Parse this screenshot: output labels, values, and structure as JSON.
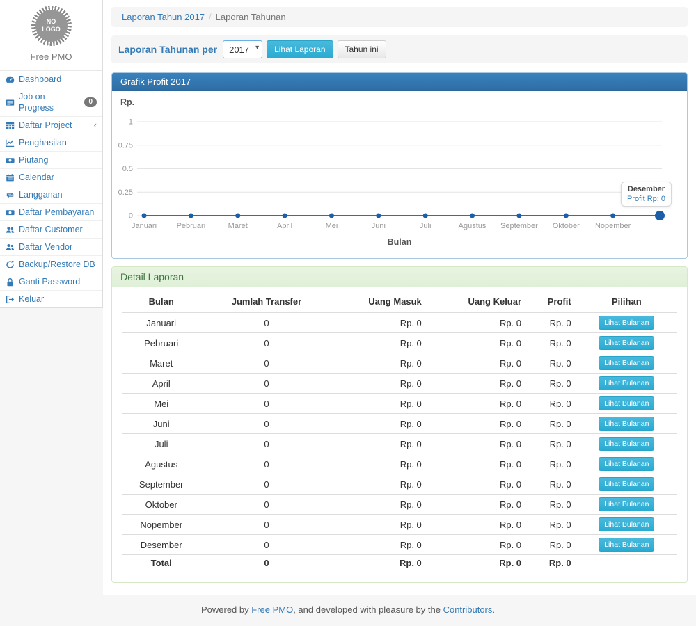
{
  "sidebar": {
    "logo_text": "NO LOGO",
    "brand": "Free PMO",
    "items": [
      {
        "label": "Dashboard",
        "icon": "dashboard-icon"
      },
      {
        "label": "Job on Progress",
        "icon": "briefcase-icon",
        "badge": "0"
      },
      {
        "label": "Daftar Project",
        "icon": "table-icon",
        "chevron": "‹"
      },
      {
        "label": "Penghasilan",
        "icon": "line-chart-icon"
      },
      {
        "label": "Piutang",
        "icon": "money-icon"
      },
      {
        "label": "Calendar",
        "icon": "calendar-icon"
      },
      {
        "label": "Langganan",
        "icon": "retweet-icon"
      },
      {
        "label": "Daftar Pembayaran",
        "icon": "money-icon"
      },
      {
        "label": "Daftar Customer",
        "icon": "users-icon"
      },
      {
        "label": "Daftar Vendor",
        "icon": "users-icon"
      },
      {
        "label": "Backup/Restore DB",
        "icon": "refresh-icon"
      },
      {
        "label": "Ganti Password",
        "icon": "lock-icon"
      },
      {
        "label": "Keluar",
        "icon": "sign-out-icon"
      }
    ]
  },
  "breadcrumb": {
    "link": "Laporan Tahun 2017",
    "separator": "/",
    "current": "Laporan Tahunan"
  },
  "filter": {
    "label": "Laporan Tahunan per",
    "year": "2017",
    "submit": "Lihat Laporan",
    "this_year": "Tahun ini"
  },
  "chart_data": {
    "type": "line",
    "title": "Grafik Profit 2017",
    "xlabel": "Bulan",
    "ylabel": "Rp.",
    "categories": [
      "Januari",
      "Pebruari",
      "Maret",
      "April",
      "Mei",
      "Juni",
      "Juli",
      "Agustus",
      "September",
      "Oktober",
      "Nopember",
      "Desember"
    ],
    "series": [
      {
        "name": "Profit",
        "values": [
          0,
          0,
          0,
          0,
          0,
          0,
          0,
          0,
          0,
          0,
          0,
          0
        ]
      }
    ],
    "ylim": [
      0,
      1
    ],
    "yticks": [
      0,
      0.25,
      0.5,
      0.75,
      1
    ],
    "grid": true,
    "visible_x_labels": 11,
    "tooltip": {
      "title": "Desember",
      "text": "Profit Rp: 0"
    },
    "line_color": "#2274b4",
    "point_color": "#1d5fa6"
  },
  "detail": {
    "title": "Detail Laporan",
    "columns": [
      "Bulan",
      "Jumlah Transfer",
      "Uang Masuk",
      "Uang Keluar",
      "Profit",
      "Pilihan"
    ],
    "action_label": "Lihat Bulanan",
    "rows": [
      {
        "bulan": "Januari",
        "jumlah_transfer": "0",
        "uang_masuk": "Rp. 0",
        "uang_keluar": "Rp. 0",
        "profit": "Rp. 0",
        "action": "Lihat Bulanan"
      },
      {
        "bulan": "Pebruari",
        "jumlah_transfer": "0",
        "uang_masuk": "Rp. 0",
        "uang_keluar": "Rp. 0",
        "profit": "Rp. 0",
        "action": "Lihat Bulanan"
      },
      {
        "bulan": "Maret",
        "jumlah_transfer": "0",
        "uang_masuk": "Rp. 0",
        "uang_keluar": "Rp. 0",
        "profit": "Rp. 0",
        "action": "Lihat Bulanan"
      },
      {
        "bulan": "April",
        "jumlah_transfer": "0",
        "uang_masuk": "Rp. 0",
        "uang_keluar": "Rp. 0",
        "profit": "Rp. 0",
        "action": "Lihat Bulanan"
      },
      {
        "bulan": "Mei",
        "jumlah_transfer": "0",
        "uang_masuk": "Rp. 0",
        "uang_keluar": "Rp. 0",
        "profit": "Rp. 0",
        "action": "Lihat Bulanan"
      },
      {
        "bulan": "Juni",
        "jumlah_transfer": "0",
        "uang_masuk": "Rp. 0",
        "uang_keluar": "Rp. 0",
        "profit": "Rp. 0",
        "action": "Lihat Bulanan"
      },
      {
        "bulan": "Juli",
        "jumlah_transfer": "0",
        "uang_masuk": "Rp. 0",
        "uang_keluar": "Rp. 0",
        "profit": "Rp. 0",
        "action": "Lihat Bulanan"
      },
      {
        "bulan": "Agustus",
        "jumlah_transfer": "0",
        "uang_masuk": "Rp. 0",
        "uang_keluar": "Rp. 0",
        "profit": "Rp. 0",
        "action": "Lihat Bulanan"
      },
      {
        "bulan": "September",
        "jumlah_transfer": "0",
        "uang_masuk": "Rp. 0",
        "uang_keluar": "Rp. 0",
        "profit": "Rp. 0",
        "action": "Lihat Bulanan"
      },
      {
        "bulan": "Oktober",
        "jumlah_transfer": "0",
        "uang_masuk": "Rp. 0",
        "uang_keluar": "Rp. 0",
        "profit": "Rp. 0",
        "action": "Lihat Bulanan"
      },
      {
        "bulan": "Nopember",
        "jumlah_transfer": "0",
        "uang_masuk": "Rp. 0",
        "uang_keluar": "Rp. 0",
        "profit": "Rp. 0",
        "action": "Lihat Bulanan"
      },
      {
        "bulan": "Desember",
        "jumlah_transfer": "0",
        "uang_masuk": "Rp. 0",
        "uang_keluar": "Rp. 0",
        "profit": "Rp. 0",
        "action": "Lihat Bulanan"
      }
    ],
    "total": {
      "bulan": "Total",
      "jumlah_transfer": "0",
      "uang_masuk": "Rp. 0",
      "uang_keluar": "Rp. 0",
      "profit": "Rp. 0"
    }
  },
  "footer": {
    "prefix": "Powered by ",
    "link1": "Free PMO",
    "middle": ", and developed with pleasure by the ",
    "link2": "Contributors",
    "suffix": "."
  },
  "colors": {
    "accent_blue": "#337ab7",
    "panel_primary_header": "#2e6da4",
    "panel_success_bg": "#dff0d8",
    "panel_success_text": "#3c763d",
    "info_button": "#2aabd2",
    "badge_gray": "#777777",
    "chart_line": "#2274b4",
    "grid_line": "#e4e4e4"
  }
}
